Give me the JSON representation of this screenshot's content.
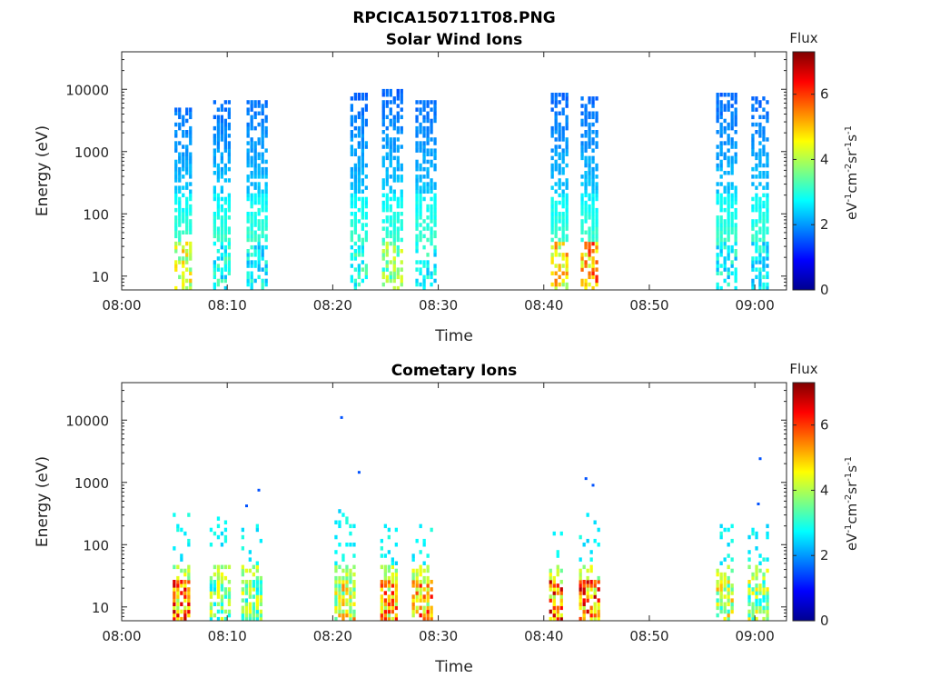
{
  "figure_title": "RPCICA150711T08.PNG",
  "colorbar": {
    "title": "Flux",
    "label": "eV-1cm-2sr-1s-1",
    "label_parts": [
      "eV",
      "-1",
      "cm",
      "-2",
      "sr",
      "-1",
      "s",
      "-1"
    ],
    "range": [
      0,
      7.3
    ],
    "ticks": [
      "0",
      "2",
      "4",
      "6"
    ],
    "colormap": "jet"
  },
  "chart_data": [
    {
      "type": "heatmap",
      "title": "Solar Wind Ions",
      "xlabel": "Time",
      "ylabel": "Energy (eV)",
      "xlim": [
        "08:00",
        "09:03"
      ],
      "ylim": [
        6,
        40000
      ],
      "yscale": "log",
      "xticks": [
        "08:00",
        "08:10",
        "08:20",
        "08:30",
        "08:40",
        "08:50",
        "09:00"
      ],
      "yticks": [
        "10",
        "100",
        "1000",
        "10000"
      ],
      "flux_range": [
        0,
        7.3
      ],
      "bursts": [
        {
          "t_start": "08:05:00",
          "t_end": "08:06:40",
          "e_top": 5000,
          "peak_flux": 5.2
        },
        {
          "t_start": "08:08:40",
          "t_end": "08:10:20",
          "e_top": 6000,
          "peak_flux": 3.4
        },
        {
          "t_start": "08:11:50",
          "t_end": "08:13:40",
          "e_top": 6000,
          "peak_flux": 3.2
        },
        {
          "t_start": "08:21:40",
          "t_end": "08:23:20",
          "e_top": 8000,
          "peak_flux": 3.5
        },
        {
          "t_start": "08:24:40",
          "t_end": "08:26:30",
          "e_top": 9000,
          "peak_flux": 4.4
        },
        {
          "t_start": "08:27:50",
          "t_end": "08:29:40",
          "e_top": 6000,
          "peak_flux": 3.4
        },
        {
          "t_start": "08:40:40",
          "t_end": "08:42:10",
          "e_top": 8000,
          "peak_flux": 5.6
        },
        {
          "t_start": "08:43:30",
          "t_end": "08:45:10",
          "e_top": 7000,
          "peak_flux": 6.3
        },
        {
          "t_start": "08:56:20",
          "t_end": "08:58:10",
          "e_top": 8000,
          "peak_flux": 3.3
        },
        {
          "t_start": "08:59:40",
          "t_end": "09:01:20",
          "e_top": 7000,
          "peak_flux": 3.2
        }
      ]
    },
    {
      "type": "heatmap",
      "title": "Cometary Ions",
      "xlabel": "Time",
      "ylabel": "Energy (eV)",
      "xlim": [
        "08:00",
        "09:03"
      ],
      "ylim": [
        6,
        40000
      ],
      "yscale": "log",
      "xticks": [
        "08:00",
        "08:10",
        "08:20",
        "08:30",
        "08:40",
        "08:50",
        "09:00"
      ],
      "yticks": [
        "10",
        "100",
        "1000",
        "10000"
      ],
      "flux_range": [
        0,
        7.3
      ],
      "bursts": [
        {
          "t_start": "08:04:50",
          "t_end": "08:06:30",
          "e_top": 300,
          "peak_flux": 6.9
        },
        {
          "t_start": "08:08:20",
          "t_end": "08:10:10",
          "e_top": 250,
          "peak_flux": 4.6
        },
        {
          "t_start": "08:11:20",
          "t_end": "08:13:10",
          "e_top": 200,
          "peak_flux": 4.6
        },
        {
          "t_start": "08:20:10",
          "t_end": "08:22:10",
          "e_top": 350,
          "peak_flux": 5.6
        },
        {
          "t_start": "08:24:30",
          "t_end": "08:26:10",
          "e_top": 200,
          "peak_flux": 6.4
        },
        {
          "t_start": "08:27:30",
          "t_end": "08:29:30",
          "e_top": 200,
          "peak_flux": 6.5
        },
        {
          "t_start": "08:40:30",
          "t_end": "08:41:40",
          "e_top": 150,
          "peak_flux": 7.0
        },
        {
          "t_start": "08:43:20",
          "t_end": "08:45:10",
          "e_top": 300,
          "peak_flux": 7.0
        },
        {
          "t_start": "08:56:20",
          "t_end": "08:57:50",
          "e_top": 200,
          "peak_flux": 5.2
        },
        {
          "t_start": "08:59:20",
          "t_end": "09:01:10",
          "e_top": 200,
          "peak_flux": 4.8
        }
      ],
      "isolated_points": [
        {
          "t": "08:20:50",
          "e": 11000
        },
        {
          "t": "08:22:30",
          "e": 1450
        },
        {
          "t": "08:44:00",
          "e": 1150
        },
        {
          "t": "08:44:40",
          "e": 900
        },
        {
          "t": "09:00:30",
          "e": 2400
        },
        {
          "t": "09:00:20",
          "e": 450
        },
        {
          "t": "08:13:00",
          "e": 750
        },
        {
          "t": "08:11:50",
          "e": 420
        }
      ]
    }
  ]
}
